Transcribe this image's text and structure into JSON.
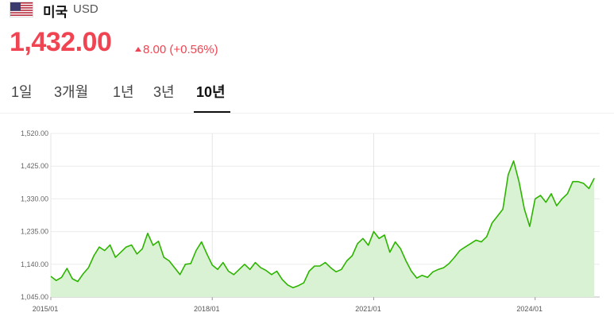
{
  "header": {
    "flag_icon": "us-flag-icon",
    "country": "미국",
    "currency": "USD",
    "price": "1,432.00",
    "change": "8.00 (+0.56%)",
    "change_color": "#f04452"
  },
  "tabs": [
    {
      "label": "1일",
      "active": false
    },
    {
      "label": "3개월",
      "active": false
    },
    {
      "label": "1년",
      "active": false
    },
    {
      "label": "3년",
      "active": false
    },
    {
      "label": "10년",
      "active": true
    }
  ],
  "chart_data": {
    "type": "area",
    "title": "",
    "xlabel": "",
    "ylabel": "",
    "ylim": [
      1045,
      1520
    ],
    "xlim": [
      2015.0,
      2025.2
    ],
    "y_ticks": [
      {
        "value": 1045,
        "label": "1,045.00"
      },
      {
        "value": 1140,
        "label": "1,140.00"
      },
      {
        "value": 1235,
        "label": "1,235.00"
      },
      {
        "value": 1330,
        "label": "1,330.00"
      },
      {
        "value": 1425,
        "label": "1,425.00"
      },
      {
        "value": 1520,
        "label": "1,520.00"
      }
    ],
    "x_ticks": [
      {
        "value": 2015.0,
        "label": "2015/01"
      },
      {
        "value": 2018.0,
        "label": "2018/01"
      },
      {
        "value": 2021.0,
        "label": "2021/01"
      },
      {
        "value": 2024.0,
        "label": "2024/01"
      }
    ],
    "grid": true,
    "line_color": "#2db400",
    "fill_color": "#d9f2d3",
    "series": [
      {
        "x": [
          2015.0,
          2015.1,
          2015.2,
          2015.3,
          2015.4,
          2015.5,
          2015.6,
          2015.7,
          2015.8,
          2015.9,
          2016.0,
          2016.1,
          2016.2,
          2016.3,
          2016.4,
          2016.5,
          2016.6,
          2016.7,
          2016.8,
          2016.9,
          2017.0,
          2017.1,
          2017.2,
          2017.3,
          2017.4,
          2017.5,
          2017.6,
          2017.7,
          2017.8,
          2017.9,
          2018.0,
          2018.1,
          2018.2,
          2018.3,
          2018.4,
          2018.5,
          2018.6,
          2018.7,
          2018.8,
          2018.9,
          2019.0,
          2019.1,
          2019.2,
          2019.3,
          2019.4,
          2019.5,
          2019.6,
          2019.7,
          2019.8,
          2019.9,
          2020.0,
          2020.1,
          2020.2,
          2020.3,
          2020.4,
          2020.5,
          2020.6,
          2020.7,
          2020.8,
          2020.9,
          2021.0,
          2021.1,
          2021.2,
          2021.3,
          2021.4,
          2021.5,
          2021.6,
          2021.7,
          2021.8,
          2021.9,
          2022.0,
          2022.1,
          2022.2,
          2022.3,
          2022.4,
          2022.5,
          2022.6,
          2022.7,
          2022.8,
          2022.9,
          2023.0,
          2023.1,
          2023.2,
          2023.3,
          2023.4,
          2023.5,
          2023.6,
          2023.7,
          2023.8,
          2023.9,
          2024.0,
          2024.1,
          2024.2,
          2024.3,
          2024.4,
          2024.5,
          2024.6,
          2024.7,
          2024.8,
          2024.9,
          2025.0,
          2025.1
        ],
        "values": [
          1105,
          1093,
          1102,
          1128,
          1098,
          1090,
          1112,
          1130,
          1165,
          1190,
          1180,
          1196,
          1160,
          1175,
          1190,
          1196,
          1170,
          1185,
          1230,
          1195,
          1207,
          1160,
          1150,
          1130,
          1110,
          1140,
          1142,
          1180,
          1205,
          1170,
          1138,
          1125,
          1145,
          1120,
          1110,
          1125,
          1140,
          1125,
          1145,
          1130,
          1122,
          1110,
          1120,
          1096,
          1080,
          1072,
          1078,
          1086,
          1120,
          1135,
          1135,
          1145,
          1130,
          1118,
          1125,
          1150,
          1165,
          1200,
          1215,
          1195,
          1235,
          1215,
          1225,
          1175,
          1205,
          1185,
          1150,
          1120,
          1100,
          1108,
          1102,
          1118,
          1125,
          1130,
          1142,
          1160,
          1180,
          1190,
          1200,
          1210,
          1205,
          1220,
          1260,
          1280,
          1300,
          1400,
          1440,
          1380,
          1300,
          1250,
          1330,
          1340,
          1320,
          1345,
          1310,
          1330,
          1345,
          1380,
          1380,
          1375,
          1360,
          1390
        ]
      }
    ]
  }
}
